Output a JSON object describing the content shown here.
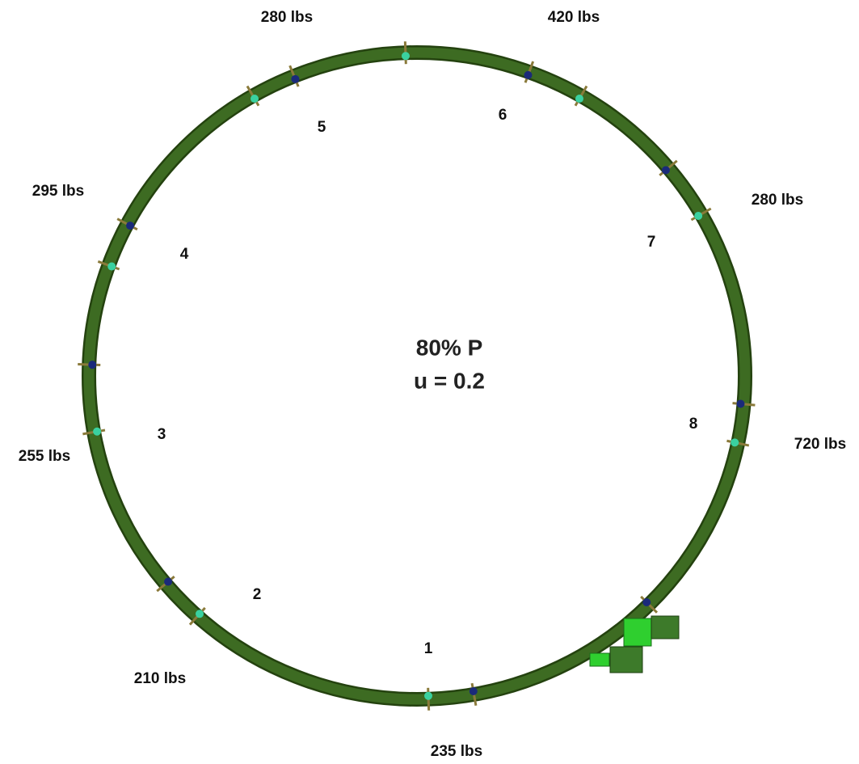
{
  "center": {
    "line1": "80% P",
    "line2": "u = 0.2"
  },
  "segments": [
    {
      "number": "1",
      "load": "235 lbs"
    },
    {
      "number": "2",
      "load": "210 lbs"
    },
    {
      "number": "3",
      "load": "255 lbs"
    },
    {
      "number": "4",
      "load": "295 lbs"
    },
    {
      "number": "5",
      "load": "280 lbs"
    },
    {
      "number": "6",
      "load": "420 lbs"
    },
    {
      "number": "7",
      "load": "280 lbs"
    },
    {
      "number": "8",
      "load": "720 lbs"
    }
  ]
}
